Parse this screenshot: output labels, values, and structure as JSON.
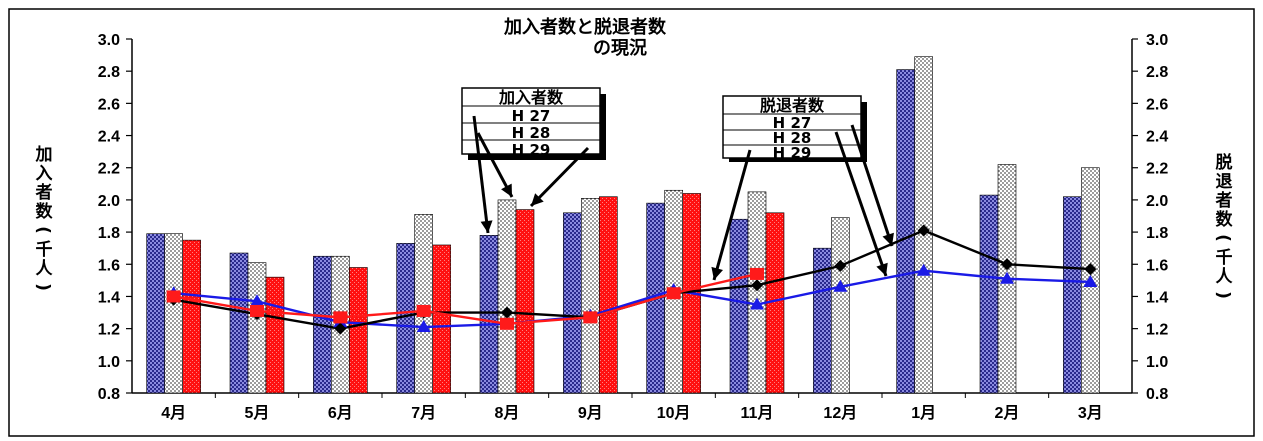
{
  "chart_data": {
    "type": "bar",
    "title_lines": [
      "加入者数と脱退者数",
      "の現況"
    ],
    "ylabel_left": "加入者数(千人)",
    "ylabel_right": "脱退者数(千人)",
    "ylim": [
      0.8,
      3.0
    ],
    "yticks": [
      "0.8",
      "1.0",
      "1.2",
      "1.4",
      "1.6",
      "1.8",
      "2.0",
      "2.2",
      "2.4",
      "2.6",
      "2.8",
      "3.0"
    ],
    "categories": [
      "4月",
      "5月",
      "6月",
      "7月",
      "8月",
      "9月",
      "10月",
      "11月",
      "12月",
      "1月",
      "2月",
      "3月"
    ],
    "bar_series": [
      {
        "name": "H 27",
        "color": "#3f3fa0",
        "values": [
          1.79,
          1.67,
          1.65,
          1.73,
          1.78,
          1.92,
          1.98,
          1.88,
          1.7,
          2.81,
          2.03,
          2.02
        ]
      },
      {
        "name": "H 28",
        "color": "#e8e8e8",
        "values": [
          1.79,
          1.61,
          1.65,
          1.91,
          2.0,
          2.01,
          2.06,
          2.05,
          1.89,
          2.89,
          2.22,
          2.2
        ]
      },
      {
        "name": "H 29",
        "color": "#ff1a1a",
        "values": [
          1.75,
          1.52,
          1.58,
          1.72,
          1.94,
          2.02,
          2.04,
          1.92,
          null,
          null,
          null,
          null
        ]
      }
    ],
    "line_series": [
      {
        "name": "H 27",
        "color": "#1a1ae6",
        "marker": "triangle",
        "values": [
          1.42,
          1.37,
          1.24,
          1.21,
          1.23,
          1.28,
          1.44,
          1.35,
          1.46,
          1.56,
          1.51,
          1.49
        ]
      },
      {
        "name": "H 28",
        "color": "#000000",
        "marker": "diamond",
        "values": [
          1.38,
          1.29,
          1.2,
          1.3,
          1.3,
          1.27,
          1.42,
          1.47,
          1.59,
          1.81,
          1.6,
          1.57
        ]
      },
      {
        "name": "H 29",
        "color": "#ff1a1a",
        "marker": "square",
        "values": [
          1.4,
          1.31,
          1.27,
          1.31,
          1.23,
          1.27,
          1.42,
          1.54,
          null,
          null,
          null,
          null
        ]
      }
    ],
    "legend_bars": {
      "title": "加入者数",
      "entries": [
        "H 27",
        "H 28",
        "H 29"
      ]
    },
    "legend_lines": {
      "title": "脱退者数",
      "entries": [
        "H 27",
        "H 28",
        "H 29"
      ]
    }
  }
}
